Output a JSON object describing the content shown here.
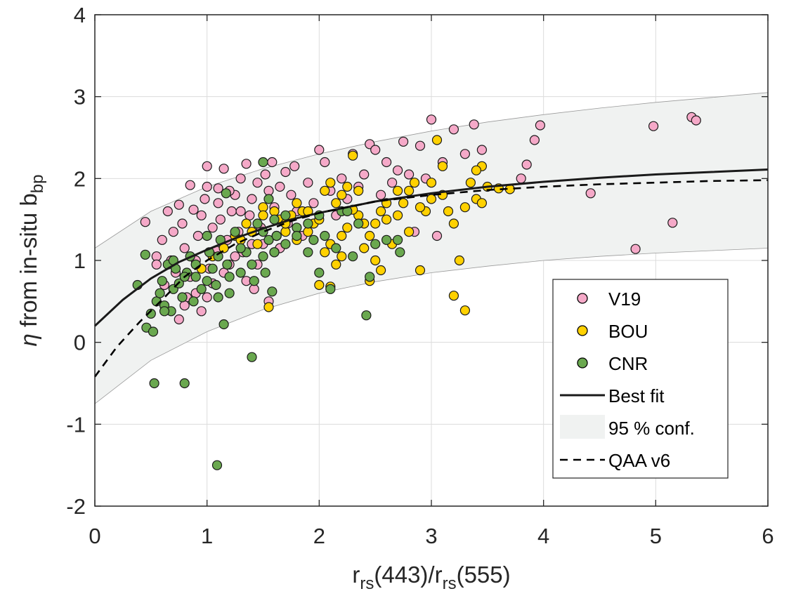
{
  "chart_data": {
    "type": "scatter",
    "xlabel": {
      "main": "r",
      "sub1": "rs",
      "mid": "(443)/r",
      "sub2": "rs",
      "tail": "(555)"
    },
    "ylabel": {
      "eta": "η",
      "main": " from in-situ b",
      "sub": "bp"
    },
    "xlim": [
      0,
      6
    ],
    "ylim": [
      -2,
      4
    ],
    "xticks": [
      "0",
      "1",
      "2",
      "3",
      "4",
      "5",
      "6"
    ],
    "yticks": [
      "-2",
      "-1",
      "0",
      "1",
      "2",
      "3",
      "4"
    ],
    "grid": true,
    "legend_position": "bottom-right",
    "series": [
      {
        "name": "V19",
        "color": "#f5a9c8",
        "points": [
          [
            0.45,
            1.47
          ],
          [
            0.55,
            1.05
          ],
          [
            0.6,
            1.25
          ],
          [
            0.65,
            1.6
          ],
          [
            0.7,
            1.35
          ],
          [
            0.72,
            0.85
          ],
          [
            0.75,
            1.68
          ],
          [
            0.78,
            1.45
          ],
          [
            0.8,
            1.15
          ],
          [
            0.82,
            0.55
          ],
          [
            0.85,
            1.92
          ],
          [
            0.88,
            1.62
          ],
          [
            0.9,
            1.0
          ],
          [
            0.92,
            1.3
          ],
          [
            0.95,
            1.55
          ],
          [
            0.98,
            1.75
          ],
          [
            1.0,
            2.15
          ],
          [
            1.02,
            0.9
          ],
          [
            1.05,
            1.4
          ],
          [
            1.08,
            1.12
          ],
          [
            1.1,
            1.88
          ],
          [
            1.12,
            1.5
          ],
          [
            1.15,
            2.12
          ],
          [
            1.18,
            1.25
          ],
          [
            1.2,
            0.95
          ],
          [
            1.22,
            1.6
          ],
          [
            1.25,
            1.8
          ],
          [
            1.28,
            1.35
          ],
          [
            1.3,
            2.0
          ],
          [
            1.32,
            1.1
          ],
          [
            1.35,
            2.18
          ],
          [
            1.38,
            1.55
          ],
          [
            1.4,
            1.75
          ],
          [
            1.42,
            0.65
          ],
          [
            1.45,
            1.95
          ],
          [
            1.48,
            1.4
          ],
          [
            1.5,
            1.2
          ],
          [
            1.52,
            2.05
          ],
          [
            1.55,
            1.85
          ],
          [
            1.58,
            2.2
          ],
          [
            1.6,
            1.65
          ],
          [
            1.62,
            1.3
          ],
          [
            1.65,
            1.9
          ],
          [
            1.68,
            1.5
          ],
          [
            1.7,
            2.08
          ],
          [
            1.72,
            1.45
          ],
          [
            1.75,
            1.8
          ],
          [
            1.78,
            2.15
          ],
          [
            1.8,
            1.6
          ],
          [
            1.85,
            1.3
          ],
          [
            1.9,
            1.95
          ],
          [
            1.95,
            1.7
          ],
          [
            2.0,
            2.35
          ],
          [
            2.05,
            2.2
          ],
          [
            2.1,
            1.85
          ],
          [
            2.15,
            1.55
          ],
          [
            2.2,
            2.0
          ],
          [
            2.25,
            1.75
          ],
          [
            2.3,
            2.3
          ],
          [
            2.35,
            1.9
          ],
          [
            2.4,
            2.05
          ],
          [
            2.45,
            2.42
          ],
          [
            2.5,
            2.35
          ],
          [
            2.55,
            1.8
          ],
          [
            2.6,
            2.2
          ],
          [
            2.65,
            1.95
          ],
          [
            2.7,
            2.1
          ],
          [
            2.75,
            2.45
          ],
          [
            2.8,
            2.05
          ],
          [
            2.85,
            1.35
          ],
          [
            2.9,
            2.4
          ],
          [
            2.95,
            2.0
          ],
          [
            3.0,
            2.72
          ],
          [
            3.05,
            1.3
          ],
          [
            3.1,
            2.2
          ],
          [
            3.2,
            2.6
          ],
          [
            3.3,
            2.3
          ],
          [
            3.38,
            2.66
          ],
          [
            3.45,
            2.35
          ],
          [
            3.8,
            2.0
          ],
          [
            3.85,
            2.17
          ],
          [
            3.92,
            2.47
          ],
          [
            3.97,
            2.65
          ],
          [
            4.42,
            1.82
          ],
          [
            4.82,
            1.14
          ],
          [
            4.98,
            2.64
          ],
          [
            5.15,
            1.46
          ],
          [
            5.32,
            2.75
          ],
          [
            5.36,
            2.71
          ],
          [
            0.55,
            0.95
          ],
          [
            0.62,
            0.7
          ],
          [
            0.68,
            1.0
          ],
          [
            0.75,
            0.28
          ],
          [
            0.8,
            0.45
          ],
          [
            0.85,
            0.8
          ],
          [
            0.9,
            0.6
          ],
          [
            0.95,
            0.38
          ],
          [
            1.0,
            0.55
          ],
          [
            1.05,
            0.72
          ],
          [
            1.15,
            0.85
          ],
          [
            1.25,
            1.05
          ],
          [
            1.35,
            0.75
          ],
          [
            1.45,
            0.95
          ],
          [
            1.55,
            0.5
          ],
          [
            1.65,
            1.15
          ],
          [
            1.0,
            1.9
          ],
          [
            1.1,
            1.7
          ],
          [
            1.2,
            1.85
          ],
          [
            1.3,
            1.6
          ],
          [
            1.4,
            1.2
          ]
        ]
      },
      {
        "name": "BOU",
        "color": "#ffd100",
        "points": [
          [
            0.95,
            0.9
          ],
          [
            1.05,
            1.05
          ],
          [
            1.15,
            1.15
          ],
          [
            1.25,
            1.3
          ],
          [
            1.35,
            1.45
          ],
          [
            1.45,
            1.2
          ],
          [
            1.5,
            1.65
          ],
          [
            1.55,
            0.43
          ],
          [
            1.6,
            1.1
          ],
          [
            1.65,
            1.5
          ],
          [
            1.7,
            1.35
          ],
          [
            1.75,
            1.55
          ],
          [
            1.8,
            1.25
          ],
          [
            1.85,
            1.6
          ],
          [
            1.9,
            1.35
          ],
          [
            1.95,
            1.45
          ],
          [
            2.0,
            0.7
          ],
          [
            2.05,
            1.85
          ],
          [
            2.1,
            1.2
          ],
          [
            2.15,
            1.7
          ],
          [
            2.2,
            1.05
          ],
          [
            2.25,
            1.9
          ],
          [
            2.3,
            2.28
          ],
          [
            2.35,
            1.55
          ],
          [
            2.4,
            1.45
          ],
          [
            2.45,
            0.75
          ],
          [
            2.5,
            1.0
          ],
          [
            2.55,
            0.88
          ],
          [
            2.6,
            1.5
          ],
          [
            2.65,
            1.2
          ],
          [
            2.7,
            1.85
          ],
          [
            2.75,
            1.7
          ],
          [
            2.8,
            1.35
          ],
          [
            2.85,
            1.95
          ],
          [
            2.9,
            0.88
          ],
          [
            2.95,
            1.6
          ],
          [
            3.0,
            1.75
          ],
          [
            3.05,
            2.47
          ],
          [
            3.1,
            2.15
          ],
          [
            3.15,
            1.6
          ],
          [
            3.2,
            0.57
          ],
          [
            3.25,
            1.0
          ],
          [
            3.3,
            0.39
          ],
          [
            3.35,
            1.95
          ],
          [
            3.4,
            1.75
          ],
          [
            3.45,
            2.15
          ],
          [
            3.5,
            1.9
          ],
          [
            3.6,
            1.88
          ],
          [
            3.7,
            1.87
          ],
          [
            2.1,
            0.68
          ],
          [
            2.2,
            1.3
          ],
          [
            2.3,
            1.62
          ],
          [
            2.4,
            1.15
          ],
          [
            2.5,
            1.45
          ],
          [
            2.6,
            1.7
          ],
          [
            2.7,
            1.55
          ],
          [
            2.8,
            1.85
          ],
          [
            2.9,
            1.65
          ],
          [
            3.0,
            1.95
          ],
          [
            3.1,
            1.8
          ],
          [
            3.2,
            1.45
          ],
          [
            3.3,
            1.65
          ],
          [
            3.4,
            2.1
          ],
          [
            3.45,
            1.7
          ],
          [
            1.9,
            1.6
          ],
          [
            2.0,
            1.5
          ],
          [
            2.1,
            1.95
          ],
          [
            2.2,
            1.8
          ],
          [
            1.3,
            1.25
          ],
          [
            1.4,
            1.35
          ],
          [
            1.5,
            1.55
          ],
          [
            1.6,
            1.6
          ],
          [
            1.7,
            1.45
          ],
          [
            1.8,
            1.7
          ],
          [
            2.05,
            1.1
          ],
          [
            2.15,
            0.95
          ],
          [
            2.25,
            1.4
          ],
          [
            2.35,
            1.85
          ],
          [
            2.45,
            1.3
          ],
          [
            2.55,
            1.6
          ]
        ]
      },
      {
        "name": "CNR",
        "color": "#6aa84f",
        "points": [
          [
            0.38,
            0.7
          ],
          [
            0.45,
            1.07
          ],
          [
            0.46,
            0.18
          ],
          [
            0.5,
            0.35
          ],
          [
            0.52,
            0.13
          ],
          [
            0.53,
            -0.5
          ],
          [
            0.55,
            0.5
          ],
          [
            0.58,
            0.6
          ],
          [
            0.6,
            0.75
          ],
          [
            0.62,
            0.45
          ],
          [
            0.65,
            0.95
          ],
          [
            0.68,
            0.38
          ],
          [
            0.7,
            0.65
          ],
          [
            0.72,
            0.9
          ],
          [
            0.75,
            0.72
          ],
          [
            0.78,
            0.55
          ],
          [
            0.8,
            -0.5
          ],
          [
            0.82,
            0.85
          ],
          [
            0.85,
            1.05
          ],
          [
            0.88,
            0.5
          ],
          [
            0.9,
            0.8
          ],
          [
            0.95,
            0.65
          ],
          [
            1.0,
            0.75
          ],
          [
            1.02,
            1.1
          ],
          [
            1.05,
            0.9
          ],
          [
            1.08,
            0.7
          ],
          [
            1.1,
            0.55
          ],
          [
            1.12,
            1.25
          ],
          [
            1.15,
            0.22
          ],
          [
            1.18,
            0.95
          ],
          [
            1.2,
            0.6
          ],
          [
            1.25,
            1.35
          ],
          [
            1.3,
            0.85
          ],
          [
            1.35,
            1.1
          ],
          [
            1.4,
            -0.18
          ],
          [
            1.42,
            0.75
          ],
          [
            1.45,
            1.45
          ],
          [
            1.5,
            1.05
          ],
          [
            1.52,
            0.85
          ],
          [
            1.55,
            1.25
          ],
          [
            1.58,
            0.62
          ],
          [
            1.6,
            1.5
          ],
          [
            1.62,
            1.3
          ],
          [
            1.7,
            1.2
          ],
          [
            1.8,
            1.4
          ],
          [
            1.9,
            1.1
          ],
          [
            2.0,
            0.85
          ],
          [
            2.05,
            1.3
          ],
          [
            2.1,
            0.65
          ],
          [
            2.15,
            1.15
          ],
          [
            2.2,
            1.6
          ],
          [
            2.3,
            1.05
          ],
          [
            2.42,
            0.33
          ],
          [
            2.45,
            0.8
          ],
          [
            2.5,
            1.2
          ],
          [
            2.6,
            1.25
          ],
          [
            2.7,
            1.25
          ],
          [
            2.72,
            1.1
          ],
          [
            1.09,
            -1.5
          ],
          [
            1.5,
            2.2
          ],
          [
            1.17,
            1.82
          ],
          [
            1.55,
            1.75
          ],
          [
            0.7,
            1.0
          ],
          [
            0.8,
            0.8
          ],
          [
            0.9,
            0.95
          ],
          [
            1.0,
            1.3
          ],
          [
            1.1,
            1.05
          ],
          [
            1.2,
            0.8
          ],
          [
            1.3,
            1.15
          ],
          [
            1.4,
            0.95
          ],
          [
            1.5,
            1.35
          ],
          [
            1.6,
            1.1
          ],
          [
            1.7,
            1.55
          ],
          [
            1.8,
            1.3
          ],
          [
            1.9,
            1.45
          ],
          [
            2.0,
            1.55
          ],
          [
            2.25,
            1.6
          ],
          [
            1.95,
            1.25
          ],
          [
            2.35,
            1.45
          ],
          [
            0.62,
            0.38
          ]
        ]
      }
    ],
    "best_fit": {
      "name": "Best fit",
      "x": [
        0,
        0.25,
        0.5,
        0.75,
        1,
        1.25,
        1.5,
        1.75,
        2,
        2.5,
        3,
        3.5,
        4,
        4.5,
        5,
        5.5,
        6
      ],
      "y": [
        0.2,
        0.52,
        0.78,
        0.98,
        1.13,
        1.27,
        1.39,
        1.5,
        1.58,
        1.72,
        1.82,
        1.9,
        1.96,
        2.01,
        2.05,
        2.08,
        2.11
      ]
    },
    "conf_upper": {
      "x": [
        0,
        0.5,
        1,
        1.5,
        2,
        2.5,
        3,
        3.5,
        4,
        4.5,
        5,
        5.5,
        6
      ],
      "y": [
        1.15,
        1.6,
        1.9,
        2.12,
        2.3,
        2.45,
        2.58,
        2.69,
        2.78,
        2.86,
        2.93,
        2.99,
        3.05
      ]
    },
    "conf_lower": {
      "x": [
        0,
        0.5,
        1,
        1.5,
        2,
        2.5,
        3,
        3.5,
        4,
        4.5,
        5,
        5.5,
        6
      ],
      "y": [
        -0.75,
        -0.22,
        0.13,
        0.4,
        0.6,
        0.74,
        0.85,
        0.93,
        1.0,
        1.05,
        1.09,
        1.12,
        1.15
      ]
    },
    "conf_band": {
      "name": "95 % conf.",
      "color": "#f0f2f1"
    },
    "qaa": {
      "name": "QAA v6",
      "x": [
        0,
        0.2,
        0.4,
        0.6,
        0.8,
        1,
        1.25,
        1.5,
        1.75,
        2,
        2.5,
        3,
        3.5,
        4,
        4.5,
        5,
        5.5,
        6
      ],
      "y": [
        -0.42,
        -0.05,
        0.25,
        0.52,
        0.8,
        1.0,
        1.2,
        1.35,
        1.48,
        1.58,
        1.72,
        1.8,
        1.86,
        1.9,
        1.93,
        1.95,
        1.97,
        1.98
      ]
    }
  }
}
